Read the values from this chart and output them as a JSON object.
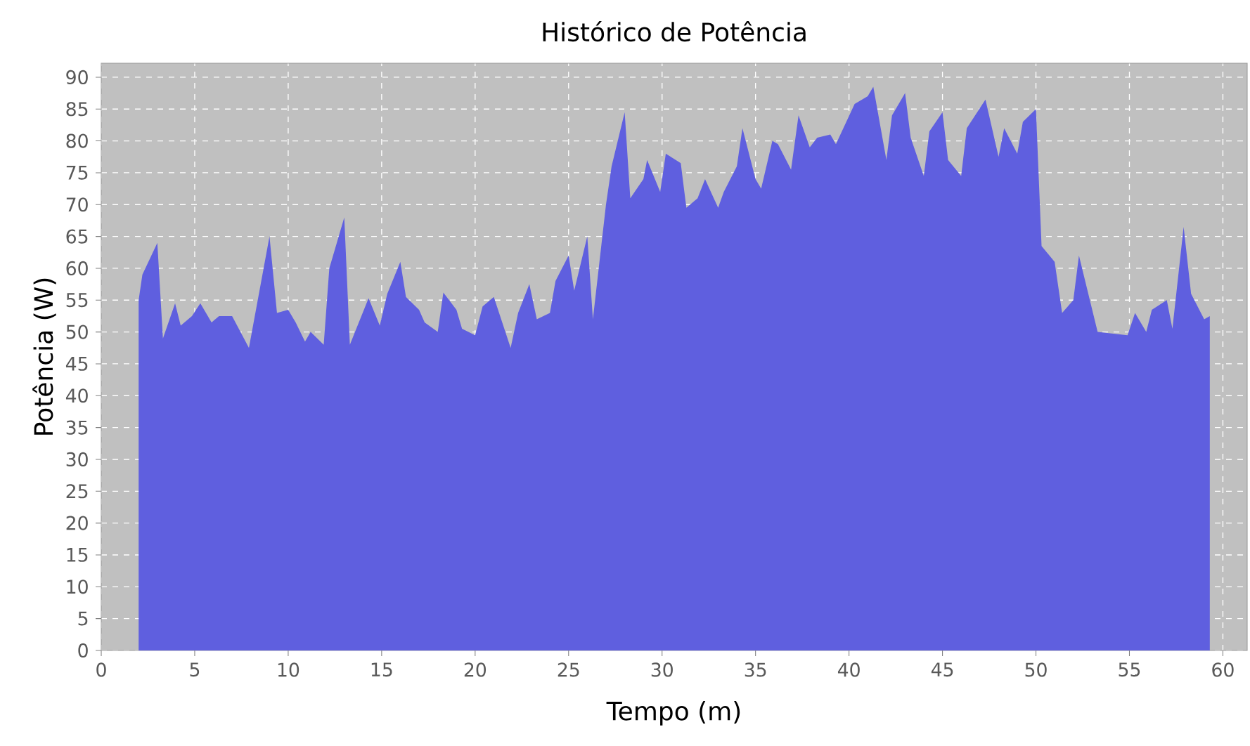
{
  "chart_data": {
    "type": "area",
    "title": "Histórico de Potência",
    "xlabel": "Tempo (m)",
    "ylabel": "Potência (W)",
    "x": [
      2.0,
      2.2,
      3.0,
      3.3,
      3.95,
      4.25,
      4.85,
      5.3,
      5.9,
      6.3,
      7.0,
      7.9,
      9.0,
      9.4,
      10.0,
      10.4,
      10.9,
      11.2,
      11.9,
      12.2,
      13.0,
      13.3,
      14.3,
      14.9,
      15.3,
      16.0,
      16.3,
      17.0,
      17.3,
      18.0,
      18.3,
      19.0,
      19.3,
      20.0,
      20.4,
      21.0,
      21.9,
      22.3,
      22.9,
      23.3,
      24.0,
      24.3,
      25.0,
      25.3,
      26.0,
      26.3,
      27.0,
      27.3,
      28.0,
      28.3,
      29.0,
      29.2,
      29.9,
      30.2,
      31.0,
      31.3,
      31.9,
      32.3,
      33.0,
      33.3,
      34.0,
      34.3,
      35.0,
      35.3,
      35.9,
      36.2,
      36.9,
      37.3,
      37.9,
      38.3,
      39.0,
      39.3,
      40.3,
      41.0,
      41.3,
      42.0,
      42.3,
      43.0,
      43.3,
      44.0,
      44.3,
      45.0,
      45.3,
      46.0,
      46.3,
      47.3,
      48.0,
      48.3,
      49.0,
      49.3,
      50.0,
      50.3,
      51.0,
      51.4,
      52.0,
      52.3,
      53.3,
      54.9,
      55.3,
      55.9,
      56.2,
      57.0,
      57.3,
      57.9,
      58.3,
      59.0,
      59.3
    ],
    "series": [
      {
        "color": "#5f5fdf",
        "values": [
          55,
          59,
          64,
          49,
          54.5,
          51,
          52.5,
          54.5,
          51.5,
          52.5,
          52.5,
          47.5,
          65,
          53,
          53.5,
          51.5,
          48.5,
          50,
          48,
          60,
          68,
          48,
          55.3,
          51,
          56,
          61,
          55.5,
          53.5,
          51.5,
          50,
          56.2,
          53.5,
          50.5,
          49.5,
          54,
          55.5,
          47.5,
          53,
          57.5,
          52,
          53,
          58,
          62,
          56.5,
          65,
          52,
          70,
          76,
          84.5,
          71,
          74,
          77,
          72,
          78,
          76.5,
          69.5,
          71,
          74,
          69.5,
          72,
          76,
          82,
          74,
          72.5,
          80,
          79.5,
          75.5,
          84,
          79,
          80.5,
          81,
          79.5,
          85.8,
          87,
          88.5,
          77,
          84,
          87.5,
          80.5,
          74.5,
          81.5,
          84.5,
          77,
          74.5,
          82,
          86.5,
          77.5,
          82,
          78,
          83,
          85,
          63.5,
          61,
          53,
          55,
          62,
          50,
          49.5,
          53,
          50,
          53.5,
          55,
          50.5,
          66.5,
          56,
          52,
          52.5
        ]
      }
    ],
    "xlim": [
      0,
      61.3
    ],
    "ylim": [
      0,
      92.2
    ],
    "xticks": [
      0,
      5,
      10,
      15,
      20,
      25,
      30,
      35,
      40,
      45,
      50,
      55,
      60
    ],
    "yticks": [
      0,
      5,
      10,
      15,
      20,
      25,
      30,
      35,
      40,
      45,
      50,
      55,
      60,
      65,
      70,
      75,
      80,
      85,
      90
    ],
    "grid": true
  }
}
